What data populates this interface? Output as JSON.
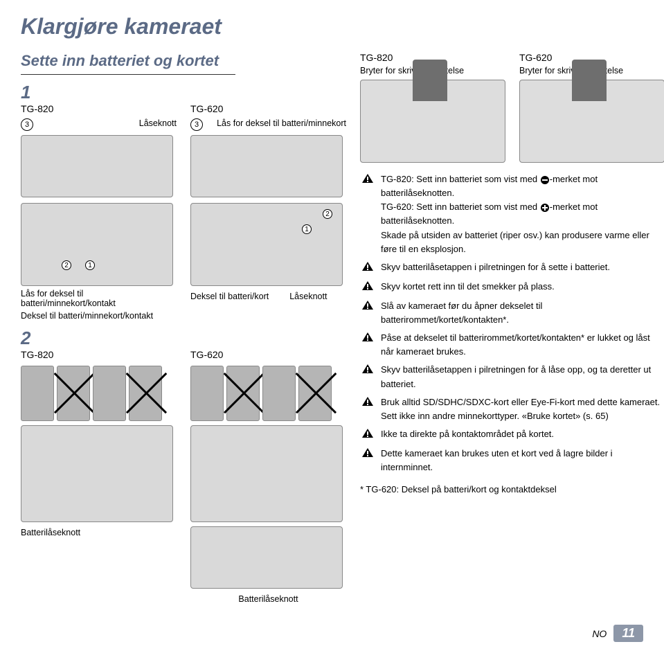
{
  "title": "Klargjøre kameraet",
  "subtitle": "Sette inn batteriet og kortet",
  "step1": "1",
  "step2": "2",
  "models": {
    "tg820": "TG-820",
    "tg620": "TG-620"
  },
  "labels": {
    "laseknott": "Låseknott",
    "lasDeksel": "Lås for deksel til batteri/minnekort",
    "lasDekselKontakt": "Lås for deksel til batteri/minnekort/kontakt",
    "dekselKontakt": "Deksel til batteri/minnekort/kontakt",
    "dekselKort": "Deksel til batteri/kort",
    "bryter": "Bryter for skrivebeskyttelse",
    "batteriKnott": "Batterilåseknott"
  },
  "circles": {
    "c1": "1",
    "c2": "2",
    "c3": "3"
  },
  "notes": [
    "TG-820: Sett inn batteriet som vist med SYM_MINUS-merket mot batterilåseknotten.\nTG-620: Sett inn batteriet som vist med SYM_PLUS-merket mot batterilåseknotten.\nSkade på utsiden av batteriet (riper osv.) kan produsere varme eller føre til en eksplosjon.",
    "Skyv batterilåsetappen i pilretningen for å sette i batteriet.",
    "Skyv kortet rett inn til det smekker på plass.",
    "Slå av kameraet før du åpner dekselet til batterirommet/kortet/kontakten*.",
    "Påse at dekselet til batterirommet/kortet/kontakten* er lukket og låst når kameraet brukes.",
    "Skyv batterilåsetappen i pilretningen for å låse opp, og ta deretter ut batteriet.",
    "Bruk alltid SD/SDHC/SDXC-kort eller Eye-Fi-kort med dette kameraet. Sett ikke inn andre minnekorttyper. «Bruke kortet» (s. 65)",
    "Ikke ta direkte på kontaktområdet på kortet.",
    "Dette kameraet kan brukes uten et kort ved å lagre bilder i internminnet."
  ],
  "footnote": "* TG-620: Deksel på batteri/kort og kontaktdeksel",
  "footer": {
    "lang": "NO",
    "page": "11"
  }
}
